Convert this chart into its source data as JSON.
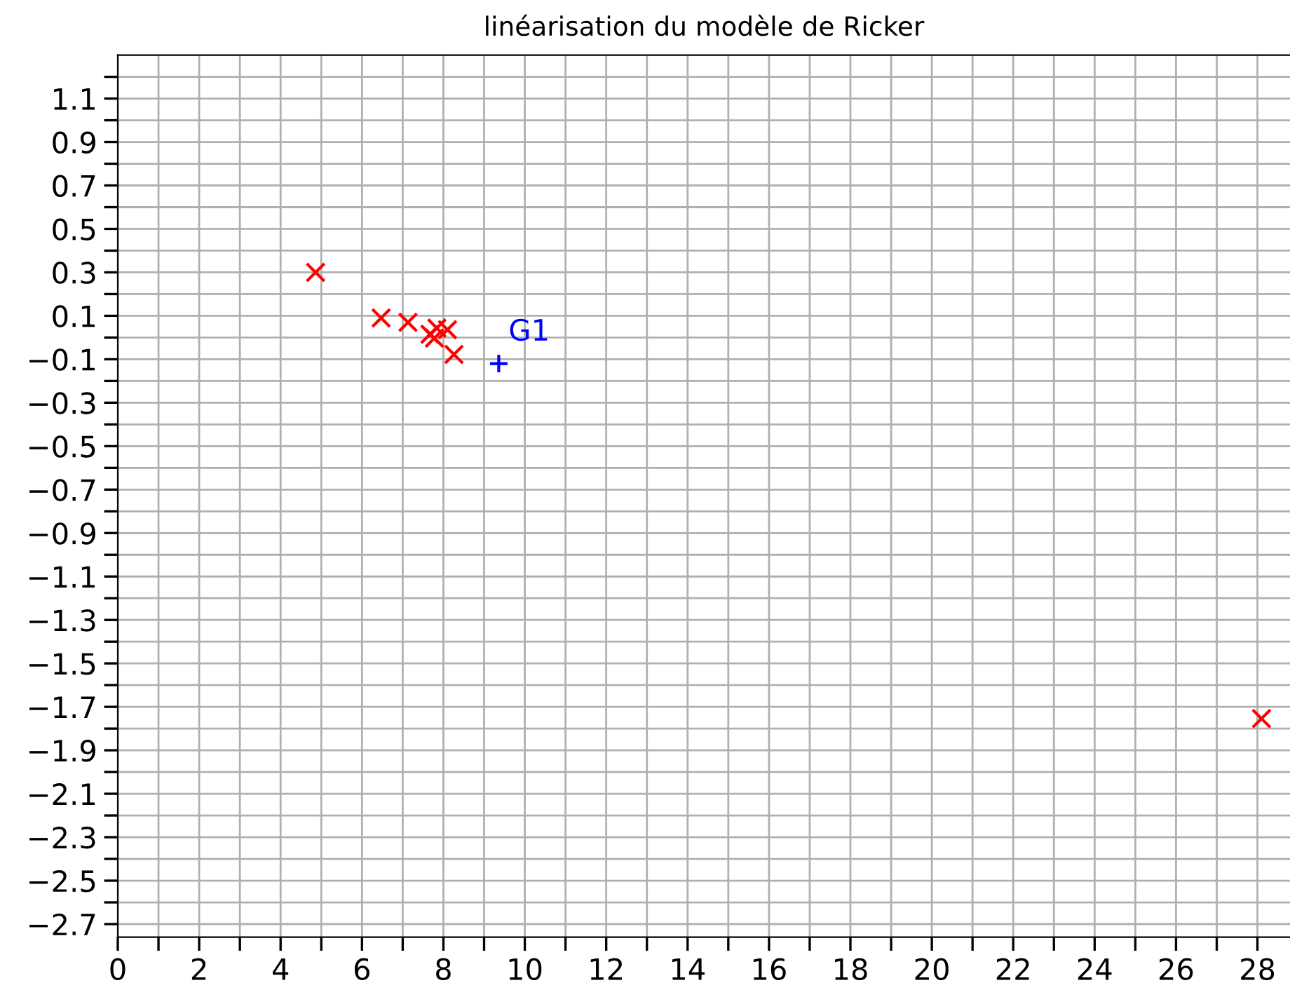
{
  "chart_data": {
    "type": "scatter",
    "title": "linéarisation du modèle de Ricker",
    "series": [
      {
        "color": "#ff0000",
        "marker": "cross",
        "x": [
          4.86,
          6.47,
          7.13,
          7.67,
          7.84,
          8.1,
          7.78,
          8.26,
          28.1
        ],
        "values": [
          0.3,
          0.09,
          0.07,
          0.015,
          0.043,
          0.036,
          -0.003,
          -0.078,
          -1.754
        ]
      },
      {
        "name": "G1",
        "color": "#0000ff",
        "marker": "plus",
        "x": [
          9.36
        ],
        "values": [
          -0.12
        ]
      }
    ],
    "xlim": [
      0,
      28.8
    ],
    "xticks": [
      0,
      {
        "value": 1,
        "label": null
      },
      2,
      {
        "value": 3,
        "label": null
      },
      4,
      {
        "value": 5,
        "label": null
      },
      6,
      {
        "value": 7,
        "label": null
      },
      8,
      {
        "value": 9,
        "label": null
      },
      10,
      {
        "value": 11,
        "label": null
      },
      12,
      {
        "value": 13,
        "label": null
      },
      14,
      {
        "value": 15,
        "label": null
      },
      16,
      {
        "value": 17,
        "label": null
      },
      18,
      {
        "value": 19,
        "label": null
      },
      20,
      {
        "value": 21,
        "label": null
      },
      22,
      {
        "value": 23,
        "label": null
      },
      24,
      {
        "value": 25,
        "label": null
      },
      26,
      {
        "value": 27,
        "label": null
      },
      28
    ],
    "ylim": [
      -2.76,
      1.3
    ],
    "yticks": [
      {
        "value": -2.7,
        "label": "−2.7"
      },
      {
        "value": -2.6,
        "label": null
      },
      {
        "value": -2.5,
        "label": "−2.5"
      },
      {
        "value": -2.4,
        "label": null
      },
      {
        "value": -2.3,
        "label": "−2.3"
      },
      {
        "value": -2.2,
        "label": null
      },
      {
        "value": -2.1,
        "label": "−2.1"
      },
      {
        "value": -2.0,
        "label": null
      },
      {
        "value": -1.9,
        "label": "−1.9"
      },
      {
        "value": -1.8,
        "label": null
      },
      {
        "value": -1.7,
        "label": "−1.7"
      },
      {
        "value": -1.6,
        "label": null
      },
      {
        "value": -1.5,
        "label": "−1.5"
      },
      {
        "value": -1.4,
        "label": null
      },
      {
        "value": -1.3,
        "label": "−1.3"
      },
      {
        "value": -1.2,
        "label": null
      },
      {
        "value": -1.1,
        "label": "−1.1"
      },
      {
        "value": -1.0,
        "label": null
      },
      {
        "value": -0.9,
        "label": "−0.9"
      },
      {
        "value": -0.8,
        "label": null
      },
      {
        "value": -0.7,
        "label": "−0.7"
      },
      {
        "value": -0.6,
        "label": null
      },
      {
        "value": -0.5,
        "label": "−0.5"
      },
      {
        "value": -0.4,
        "label": null
      },
      {
        "value": -0.3,
        "label": "−0.3"
      },
      {
        "value": -0.2,
        "label": null
      },
      {
        "value": -0.1,
        "label": "−0.1"
      },
      {
        "value": 0,
        "label": null
      },
      0.1,
      {
        "value": 0.2,
        "label": null
      },
      0.3,
      {
        "value": 0.4,
        "label": null
      },
      0.5,
      {
        "value": 0.6,
        "label": null
      },
      0.7,
      {
        "value": 0.8,
        "label": null
      },
      0.9,
      {
        "value": 1.0,
        "label": null
      },
      1.1,
      {
        "value": 1.2,
        "label": null
      }
    ],
    "grid": true
  }
}
